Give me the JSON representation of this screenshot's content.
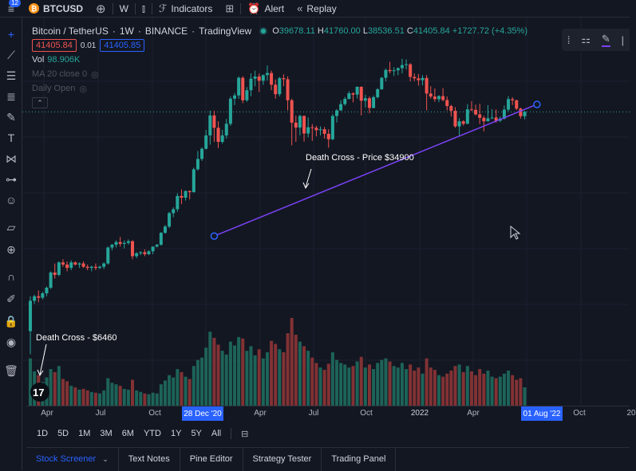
{
  "topbar": {
    "menu_badge": "12",
    "symbol_icon": "bitcoin-icon",
    "symbol": "BTCUSD",
    "add_icon": "plus-circle-icon",
    "interval": "W",
    "chart_type_icon": "candles-icon",
    "indicators_icon": "indicators-icon",
    "indicators_label": "Indicators",
    "layout_icon": "grid-icon",
    "alert_icon": "alarm-clock-icon",
    "alert_label": "Alert",
    "replay_icon": "rewind-icon",
    "replay_label": "Replay"
  },
  "legend": {
    "title": "Bitcoin / TetherUS",
    "interval": "1W",
    "exchange": "BINANCE",
    "source": "TradingView",
    "ohlc": {
      "o_label": "O",
      "o": "39678.11",
      "h_label": "H",
      "h": "41760.00",
      "l_label": "L",
      "l": "38536.51",
      "c_label": "C",
      "c": "41405.84",
      "change": "+1727.72 (+4.35%)"
    },
    "sell_price": "41405.84",
    "spread": "0.01",
    "buy_price": "41405.85",
    "volume_label": "Vol",
    "volume_value": "98.906K",
    "ma_label": "MA 20 close 0",
    "daily_open_label": "Daily Open",
    "collapse_glyph": "⌃"
  },
  "left_tools": [
    {
      "name": "crosshair-icon",
      "glyph": "+"
    },
    {
      "name": "trend-line-icon",
      "glyph": "⟋"
    },
    {
      "name": "fib-icon",
      "glyph": "☰"
    },
    {
      "name": "pattern-icon",
      "glyph": "≣"
    },
    {
      "name": "brush-icon",
      "glyph": "✎"
    },
    {
      "name": "text-icon",
      "glyph": "T"
    },
    {
      "name": "node-icon",
      "glyph": "⋈"
    },
    {
      "name": "forecast-icon",
      "glyph": "⊶"
    },
    {
      "name": "emoji-icon",
      "glyph": "☺"
    },
    {
      "name": "ruler-icon",
      "glyph": "▱"
    },
    {
      "name": "zoom-in-icon",
      "glyph": "⊕"
    },
    {
      "name": "magnet-icon",
      "glyph": "∩"
    },
    {
      "name": "lock-drawing-icon",
      "glyph": "✐"
    },
    {
      "name": "lock-icon",
      "glyph": "🔒"
    },
    {
      "name": "eye-icon",
      "glyph": "◉"
    },
    {
      "name": "trash-icon",
      "glyph": "🗑"
    }
  ],
  "float_toolbar": [
    "drag-handle-icon",
    "template-icon",
    "pencil-icon",
    "more-icon"
  ],
  "range_buttons": [
    "1D",
    "5D",
    "1M",
    "3M",
    "6M",
    "YTD",
    "1Y",
    "5Y",
    "All"
  ],
  "range_compare_icon": "date-range-icon",
  "bottom_tabs": [
    "Stock Screener",
    "Text Notes",
    "Pine Editor",
    "Strategy Tester",
    "Trading Panel"
  ],
  "bottom_tab_chevron": "chevron-down-icon",
  "chart_data": {
    "type": "candlestick",
    "symbol": "BTCUSDT",
    "interval": "1W",
    "colors": {
      "up": "#26a69a",
      "down": "#ef5350",
      "trendline": "#7b42f6",
      "bg": "#131722"
    },
    "x_ticks": [
      "Apr",
      "Jul",
      "Oct",
      "28 Dec '20",
      "Apr",
      "Jul",
      "Oct",
      "2022",
      "Apr",
      "01 Aug '22",
      "Oct",
      "20"
    ],
    "highlighted_ticks": [
      "28 Dec '20",
      "01 Aug '22"
    ],
    "annotations": [
      {
        "text": "Death Cross - $6460",
        "near_week": 3
      },
      {
        "text": "Death Cross - Price $34900",
        "near_week": 69
      }
    ],
    "trendline": {
      "from_week": 45,
      "from_price": 12500,
      "to_week": 124,
      "to_price": 44500
    },
    "current_price_line": 41405.84,
    "price_min": 3000,
    "price_max": 70000,
    "volume_max": 115,
    "candles": [
      [
        5000,
        7000,
        4000,
        6700,
        62
      ],
      [
        6700,
        7100,
        6500,
        7000,
        45
      ],
      [
        7000,
        7400,
        6600,
        6900,
        40
      ],
      [
        6900,
        7300,
        6800,
        7200,
        31
      ],
      [
        7200,
        7700,
        7000,
        7600,
        37
      ],
      [
        7600,
        8900,
        7500,
        8800,
        48
      ],
      [
        8800,
        9600,
        8300,
        8600,
        44
      ],
      [
        8600,
        9800,
        8500,
        9700,
        52
      ],
      [
        9700,
        10000,
        9300,
        9500,
        35
      ],
      [
        9500,
        9800,
        8900,
        9200,
        32
      ],
      [
        9200,
        9900,
        9000,
        9700,
        26
      ],
      [
        9700,
        9800,
        9400,
        9500,
        24
      ],
      [
        9500,
        9700,
        9200,
        9600,
        21
      ],
      [
        9600,
        9800,
        9200,
        9300,
        22
      ],
      [
        9300,
        9500,
        9000,
        9200,
        20
      ],
      [
        9200,
        9400,
        8900,
        9300,
        18
      ],
      [
        9300,
        9600,
        9000,
        9200,
        17
      ],
      [
        9200,
        9400,
        9100,
        9300,
        16
      ],
      [
        9300,
        9700,
        9100,
        9600,
        20
      ],
      [
        9600,
        11300,
        9500,
        11200,
        36
      ],
      [
        11200,
        11600,
        10900,
        11500,
        30
      ],
      [
        11500,
        12000,
        11200,
        11800,
        28
      ],
      [
        11800,
        12400,
        11300,
        11600,
        26
      ],
      [
        11600,
        12000,
        11100,
        11700,
        22
      ],
      [
        11700,
        12100,
        11500,
        11900,
        21
      ],
      [
        11900,
        12000,
        10000,
        10300,
        34
      ],
      [
        10300,
        10700,
        10100,
        10600,
        20
      ],
      [
        10600,
        10800,
        10400,
        10700,
        18
      ],
      [
        10700,
        11000,
        10300,
        10500,
        16
      ],
      [
        10500,
        10900,
        10400,
        10800,
        15
      ],
      [
        10800,
        11200,
        10500,
        11300,
        17
      ],
      [
        11300,
        11600,
        11200,
        11500,
        16
      ],
      [
        11500,
        13000,
        11400,
        12900,
        28
      ],
      [
        12900,
        13900,
        12800,
        13700,
        33
      ],
      [
        13700,
        15800,
        13500,
        15600,
        40
      ],
      [
        15600,
        16500,
        15000,
        16200,
        37
      ],
      [
        16200,
        18900,
        15800,
        18400,
        48
      ],
      [
        18400,
        19600,
        17000,
        18100,
        44
      ],
      [
        18100,
        19400,
        17600,
        19300,
        38
      ],
      [
        19300,
        19400,
        17800,
        19100,
        35
      ],
      [
        19100,
        24200,
        19000,
        23800,
        52
      ],
      [
        23800,
        28400,
        23500,
        26300,
        60
      ],
      [
        26300,
        29400,
        25800,
        29000,
        63
      ],
      [
        29000,
        34800,
        28800,
        33000,
        76
      ],
      [
        33000,
        41900,
        30200,
        40000,
        97
      ],
      [
        40000,
        41900,
        31000,
        35500,
        89
      ],
      [
        35500,
        37800,
        29200,
        31000,
        80
      ],
      [
        31000,
        34800,
        30500,
        33000,
        72
      ],
      [
        33000,
        38700,
        32000,
        36900,
        67
      ],
      [
        36900,
        48000,
        36200,
        47000,
        84
      ],
      [
        47000,
        49700,
        44200,
        48500,
        79
      ],
      [
        48500,
        58300,
        46900,
        57500,
        90
      ],
      [
        57500,
        58400,
        45000,
        46300,
        88
      ],
      [
        46300,
        52600,
        45600,
        51000,
        72
      ],
      [
        51000,
        60000,
        48100,
        57000,
        78
      ],
      [
        57000,
        61600,
        53000,
        58200,
        66
      ],
      [
        58200,
        59900,
        50200,
        55900,
        74
      ],
      [
        55900,
        59400,
        53700,
        59000,
        62
      ],
      [
        59000,
        64800,
        56000,
        60200,
        70
      ],
      [
        60200,
        61600,
        51000,
        53800,
        85
      ],
      [
        53800,
        56600,
        47000,
        49100,
        81
      ],
      [
        49100,
        58000,
        48000,
        57300,
        74
      ],
      [
        57300,
        59400,
        53000,
        56700,
        70
      ],
      [
        56700,
        58300,
        42000,
        46300,
        95
      ],
      [
        46300,
        47000,
        30000,
        37300,
        115
      ],
      [
        37300,
        39900,
        31000,
        35600,
        93
      ],
      [
        35600,
        40300,
        33000,
        39800,
        84
      ],
      [
        39800,
        40000,
        31100,
        33600,
        78
      ],
      [
        33600,
        39200,
        32400,
        35700,
        72
      ],
      [
        35700,
        36800,
        31300,
        35500,
        63
      ],
      [
        35500,
        36200,
        32700,
        34700,
        56
      ],
      [
        34700,
        36000,
        33000,
        35000,
        50
      ],
      [
        35000,
        35800,
        32000,
        33500,
        47
      ],
      [
        33500,
        35000,
        29300,
        31800,
        55
      ],
      [
        31800,
        40500,
        31500,
        39800,
        70
      ],
      [
        39800,
        42500,
        37400,
        42000,
        60
      ],
      [
        42000,
        46300,
        41800,
        44600,
        56
      ],
      [
        44600,
        47800,
        43900,
        46900,
        54
      ],
      [
        46900,
        50500,
        46700,
        49500,
        50
      ],
      [
        49500,
        50000,
        45400,
        48900,
        52
      ],
      [
        48900,
        52900,
        47100,
        52700,
        58
      ],
      [
        52700,
        52900,
        40000,
        46100,
        64
      ],
      [
        46100,
        48800,
        43200,
        47200,
        50
      ],
      [
        47200,
        48000,
        40800,
        43000,
        54
      ],
      [
        43000,
        48500,
        42800,
        47700,
        48
      ],
      [
        47700,
        52000,
        47100,
        51500,
        56
      ],
      [
        51500,
        57900,
        51200,
        57500,
        60
      ],
      [
        57500,
        62900,
        55600,
        62000,
        62
      ],
      [
        62000,
        67000,
        60000,
        61300,
        58
      ],
      [
        61300,
        63700,
        58500,
        61800,
        52
      ],
      [
        61800,
        63600,
        59000,
        63100,
        50
      ],
      [
        63100,
        69000,
        60000,
        65000,
        56
      ],
      [
        65000,
        68600,
        62300,
        65500,
        48
      ],
      [
        65500,
        66200,
        55600,
        58000,
        54
      ],
      [
        58000,
        60000,
        55700,
        57200,
        46
      ],
      [
        57200,
        59600,
        53300,
        56200,
        50
      ],
      [
        56200,
        59000,
        53500,
        57400,
        42
      ],
      [
        57400,
        59000,
        42000,
        49400,
        62
      ],
      [
        49400,
        53000,
        47000,
        48000,
        50
      ],
      [
        48000,
        51900,
        45600,
        46800,
        47
      ],
      [
        46800,
        48600,
        45500,
        48200,
        40
      ],
      [
        48200,
        52100,
        45800,
        46400,
        38
      ],
      [
        46400,
        48000,
        42000,
        43800,
        42
      ],
      [
        43800,
        44300,
        39600,
        41800,
        46
      ],
      [
        41800,
        43300,
        35500,
        36000,
        52
      ],
      [
        36000,
        39000,
        33000,
        37800,
        54
      ],
      [
        37800,
        38200,
        36300,
        36900,
        44
      ],
      [
        36900,
        44600,
        36800,
        42400,
        52
      ],
      [
        42400,
        45900,
        41700,
        42200,
        45
      ],
      [
        42200,
        44400,
        40000,
        40400,
        40
      ],
      [
        40400,
        44800,
        36800,
        39100,
        48
      ],
      [
        39100,
        39800,
        34300,
        37800,
        42
      ],
      [
        37800,
        44200,
        37700,
        38900,
        46
      ],
      [
        38900,
        42500,
        38600,
        39200,
        38
      ],
      [
        39200,
        42400,
        37300,
        38000,
        36
      ],
      [
        38000,
        39600,
        37500,
        38800,
        38
      ],
      [
        38800,
        44000,
        38400,
        42300,
        42
      ],
      [
        42300,
        48200,
        41600,
        46800,
        46
      ],
      [
        46800,
        47700,
        44200,
        46300,
        40
      ],
      [
        46300,
        46500,
        42100,
        42700,
        34
      ],
      [
        42700,
        43100,
        38800,
        39700,
        36
      ],
      [
        39700,
        41800,
        38500,
        41400,
        24
      ]
    ]
  }
}
